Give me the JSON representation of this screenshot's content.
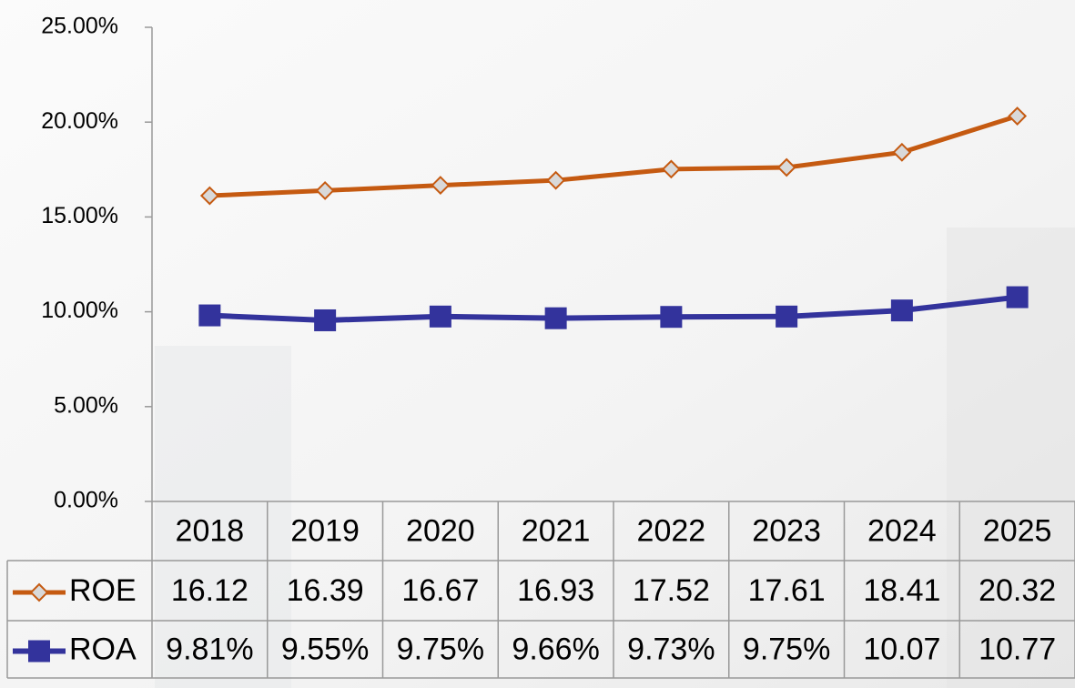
{
  "chart_data": {
    "type": "line",
    "categories": [
      "2018",
      "2019",
      "2020",
      "2021",
      "2022",
      "2023",
      "2024",
      "2025"
    ],
    "series": [
      {
        "name": "ROE",
        "color": "#c55a11",
        "marker": "diamond",
        "values": [
          16.12,
          16.39,
          16.67,
          16.93,
          17.52,
          17.61,
          18.41,
          20.32
        ]
      },
      {
        "name": "ROA",
        "color": "#33339c",
        "marker": "square",
        "values": [
          9.81,
          9.55,
          9.75,
          9.66,
          9.73,
          9.75,
          10.07,
          10.77
        ],
        "value_labels": [
          "9.81%",
          "9.55%",
          "9.75%",
          "9.66%",
          "9.73%",
          "9.75%",
          "10.07",
          "10.77"
        ]
      }
    ],
    "ylim": [
      0,
      25
    ],
    "yticks": [
      {
        "value": 0,
        "label": "0.00%"
      },
      {
        "value": 5,
        "label": "5.00%"
      },
      {
        "value": 10,
        "label": "10.00%"
      },
      {
        "value": 15,
        "label": "15.00%"
      },
      {
        "value": 20,
        "label": "20.00%"
      },
      {
        "value": 25,
        "label": "25.00%"
      }
    ],
    "grid": false
  }
}
